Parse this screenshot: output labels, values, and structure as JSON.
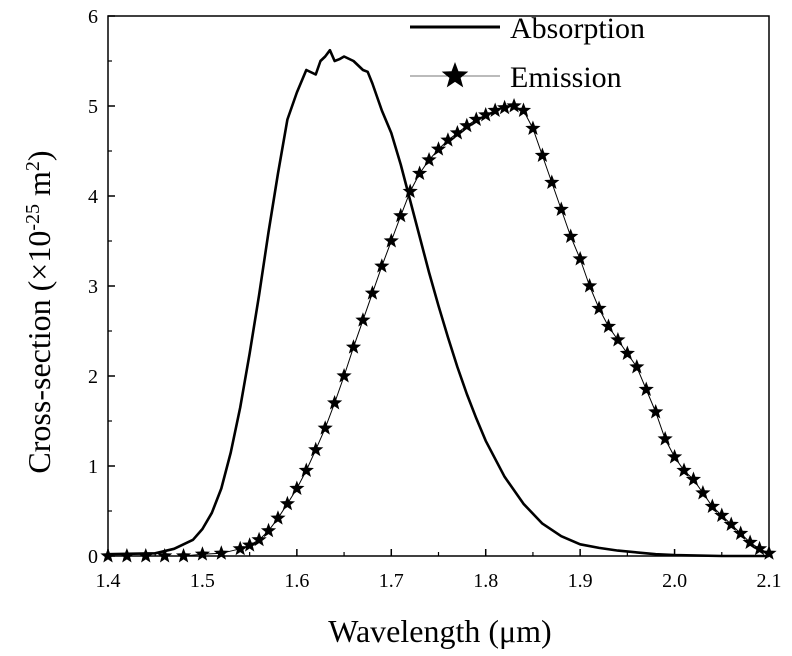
{
  "chart_data": {
    "type": "line",
    "xlabel": "Wavelength (μm)",
    "ylabel": {
      "prefix": "Cross-section (×10",
      "exp1": "-25",
      "mid": " m",
      "exp2": "2",
      "suffix": ")"
    },
    "xlim": [
      1.4,
      2.1
    ],
    "ylim": [
      0,
      6
    ],
    "x_ticks": [
      "1.4",
      "1.5",
      "1.6",
      "1.7",
      "1.8",
      "1.9",
      "2.0",
      "2.1"
    ],
    "y_ticks": [
      "0",
      "1",
      "2",
      "3",
      "4",
      "5",
      "6"
    ],
    "grid": false,
    "legend_position": "top-right",
    "series": [
      {
        "name": "Absorption",
        "style": "solid-line",
        "color": "#000000",
        "x": [
          1.4,
          1.45,
          1.47,
          1.49,
          1.5,
          1.51,
          1.52,
          1.53,
          1.54,
          1.55,
          1.56,
          1.57,
          1.58,
          1.59,
          1.6,
          1.61,
          1.62,
          1.625,
          1.63,
          1.635,
          1.64,
          1.645,
          1.65,
          1.66,
          1.67,
          1.675,
          1.68,
          1.685,
          1.69,
          1.7,
          1.71,
          1.72,
          1.73,
          1.74,
          1.75,
          1.76,
          1.77,
          1.78,
          1.79,
          1.8,
          1.82,
          1.84,
          1.86,
          1.88,
          1.9,
          1.92,
          1.94,
          1.96,
          1.98,
          2.0,
          2.05,
          2.1
        ],
        "y": [
          0.02,
          0.03,
          0.08,
          0.18,
          0.3,
          0.48,
          0.75,
          1.15,
          1.65,
          2.25,
          2.9,
          3.6,
          4.25,
          4.85,
          5.15,
          5.4,
          5.35,
          5.5,
          5.55,
          5.62,
          5.5,
          5.52,
          5.55,
          5.5,
          5.4,
          5.38,
          5.25,
          5.1,
          4.95,
          4.7,
          4.35,
          3.95,
          3.55,
          3.15,
          2.78,
          2.43,
          2.1,
          1.8,
          1.53,
          1.28,
          0.88,
          0.58,
          0.36,
          0.22,
          0.13,
          0.09,
          0.06,
          0.04,
          0.02,
          0.01,
          0.0,
          0.0
        ]
      },
      {
        "name": "Emission",
        "style": "line-with-star-markers",
        "color": "#000000",
        "x": [
          1.4,
          1.42,
          1.44,
          1.46,
          1.48,
          1.5,
          1.52,
          1.54,
          1.55,
          1.56,
          1.57,
          1.58,
          1.59,
          1.6,
          1.61,
          1.62,
          1.63,
          1.64,
          1.65,
          1.66,
          1.67,
          1.68,
          1.69,
          1.7,
          1.71,
          1.72,
          1.73,
          1.74,
          1.75,
          1.76,
          1.77,
          1.78,
          1.79,
          1.8,
          1.81,
          1.82,
          1.83,
          1.84,
          1.85,
          1.86,
          1.87,
          1.88,
          1.89,
          1.9,
          1.91,
          1.92,
          1.93,
          1.94,
          1.95,
          1.96,
          1.97,
          1.98,
          1.99,
          2.0,
          2.01,
          2.02,
          2.03,
          2.04,
          2.05,
          2.06,
          2.07,
          2.08,
          2.09,
          2.1
        ],
        "y": [
          0.0,
          0.0,
          0.0,
          0.0,
          0.0,
          0.02,
          0.03,
          0.08,
          0.12,
          0.18,
          0.28,
          0.42,
          0.58,
          0.75,
          0.95,
          1.18,
          1.42,
          1.7,
          2.0,
          2.32,
          2.62,
          2.92,
          3.22,
          3.5,
          3.78,
          4.05,
          4.25,
          4.4,
          4.52,
          4.62,
          4.7,
          4.78,
          4.85,
          4.9,
          4.95,
          4.98,
          5.0,
          4.95,
          4.75,
          4.45,
          4.15,
          3.85,
          3.55,
          3.3,
          3.0,
          2.75,
          2.55,
          2.4,
          2.25,
          2.1,
          1.85,
          1.6,
          1.3,
          1.1,
          0.95,
          0.85,
          0.7,
          0.55,
          0.45,
          0.35,
          0.25,
          0.15,
          0.08,
          0.03
        ]
      }
    ]
  }
}
